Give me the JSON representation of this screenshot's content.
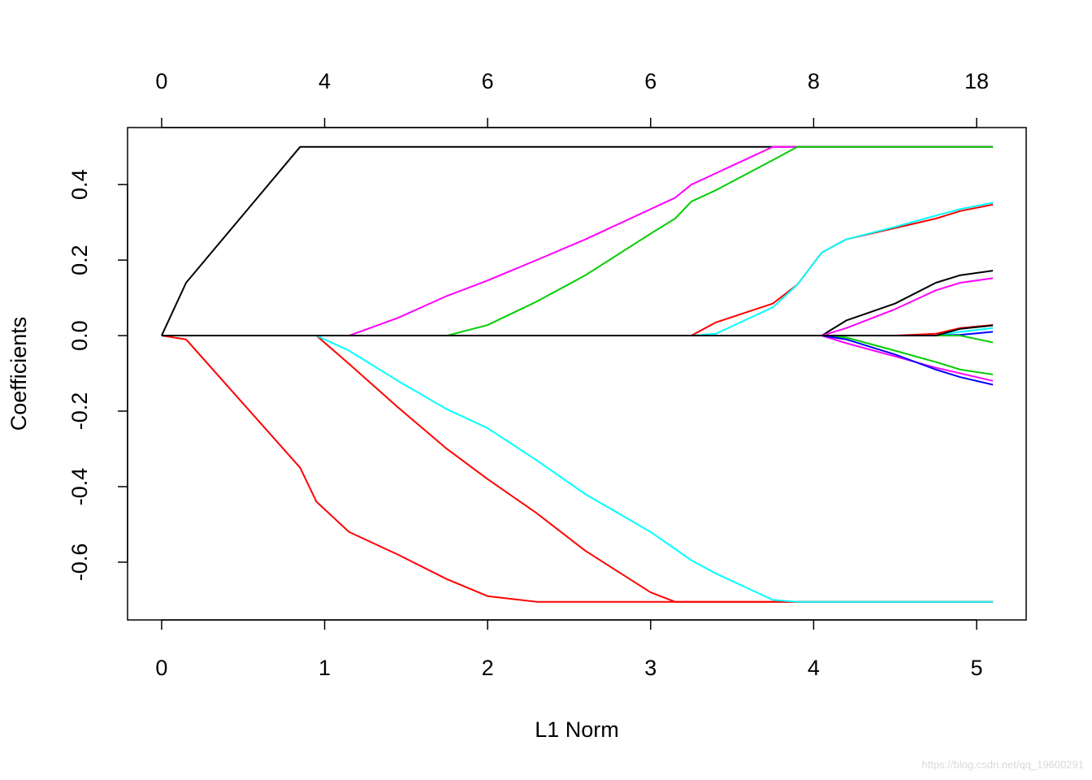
{
  "chart_data": {
    "type": "line",
    "x_label": "L1 Norm",
    "y_label": "Coefficients",
    "watermark": "https://blog.csdn.net/qq_19600291",
    "x": [
      0,
      0.15,
      0.85,
      0.95,
      1.15,
      1.45,
      1.75,
      2.0,
      2.3,
      2.6,
      3.0,
      3.15,
      3.25,
      3.4,
      3.75,
      3.9,
      4.05,
      4.2,
      4.5,
      4.75,
      4.9,
      5.1
    ],
    "xlim": [
      -0.209,
      5.304
    ],
    "ylim": [
      -0.753,
      0.551
    ],
    "xticks": [
      0,
      1,
      2,
      3,
      4,
      5
    ],
    "x2ticks": [
      0,
      {
        "value": 1,
        "label": "4"
      },
      {
        "value": 2,
        "label": "6"
      },
      {
        "value": 3,
        "label": "6"
      },
      {
        "value": 4,
        "label": "8"
      },
      {
        "value": 5,
        "label": "18"
      }
    ],
    "yticks": [
      -0.6,
      -0.4,
      -0.2,
      {
        "value": 0,
        "label": "0.0"
      },
      0.2,
      0.4
    ],
    "series": [
      {
        "color": "#000000",
        "values": [
          0,
          0.14,
          0.5,
          0.5,
          0.5,
          0.5,
          0.5,
          0.5,
          0.5,
          0.5,
          0.5,
          0.5,
          0.5,
          0.5,
          0.5,
          0.5,
          0.5,
          0.5,
          0.5,
          0.5,
          0.5,
          0.5
        ]
      },
      {
        "color": "#ff0000",
        "values": [
          0,
          -0.01,
          -0.35,
          -0.44,
          -0.52,
          -0.58,
          -0.645,
          -0.69,
          -0.705,
          -0.705,
          -0.705,
          -0.705,
          -0.705,
          -0.705,
          -0.705,
          -0.705,
          -0.705,
          -0.705,
          -0.705,
          -0.705,
          -0.705,
          -0.705
        ]
      },
      {
        "color": "#ff0000",
        "values": [
          0,
          0,
          0,
          0,
          -0.075,
          -0.19,
          -0.3,
          -0.38,
          -0.47,
          -0.57,
          -0.68,
          -0.705,
          -0.705,
          -0.705,
          -0.705,
          -0.705,
          -0.705,
          -0.705,
          -0.705,
          -0.705,
          -0.705,
          -0.705
        ]
      },
      {
        "color": "#00ffff",
        "values": [
          0,
          0,
          0,
          0,
          -0.04,
          -0.12,
          -0.195,
          -0.245,
          -0.33,
          -0.42,
          -0.52,
          -0.565,
          -0.595,
          -0.63,
          -0.7,
          -0.705,
          -0.705,
          -0.705,
          -0.705,
          -0.705,
          -0.705,
          -0.705
        ]
      },
      {
        "color": "#ff00ff",
        "values": [
          0,
          0,
          0,
          0,
          0,
          0.047,
          0.105,
          0.146,
          0.2,
          0.255,
          0.335,
          0.365,
          0.4,
          0.43,
          0.5,
          0.5,
          0.5,
          0.5,
          0.5,
          0.5,
          0.5,
          0.5
        ]
      },
      {
        "color": "#00cd00",
        "values": [
          0,
          0,
          0,
          0,
          0,
          0,
          0,
          0.028,
          0.09,
          0.16,
          0.27,
          0.31,
          0.355,
          0.385,
          0.465,
          0.5,
          0.5,
          0.5,
          0.5,
          0.5,
          0.5,
          0.5
        ]
      },
      {
        "color": "#ff0000",
        "values": [
          0,
          0,
          0,
          0,
          0,
          0,
          0,
          0,
          0,
          0,
          0,
          0,
          0,
          0.035,
          0.085,
          0.135,
          0.22,
          0.255,
          0.285,
          0.31,
          0.33,
          0.347
        ]
      },
      {
        "color": "#00ffff",
        "values": [
          0,
          0,
          0,
          0,
          0,
          0,
          0,
          0,
          0,
          0,
          0,
          0,
          0,
          0.005,
          0.075,
          0.135,
          0.22,
          0.255,
          0.288,
          0.318,
          0.335,
          0.352
        ]
      },
      {
        "color": "#000000",
        "values": [
          0,
          0,
          0,
          0,
          0,
          0,
          0,
          0,
          0,
          0,
          0,
          0,
          0,
          0,
          0,
          0,
          0,
          0.04,
          0.085,
          0.14,
          0.16,
          0.172
        ]
      },
      {
        "color": "#ff00ff",
        "values": [
          0,
          0,
          0,
          0,
          0,
          0,
          0,
          0,
          0,
          0,
          0,
          0,
          0,
          0,
          0,
          0,
          0,
          0.02,
          0.07,
          0.12,
          0.14,
          0.152
        ]
      },
      {
        "color": "#00cd00",
        "values": [
          0,
          0,
          0,
          0,
          0,
          0,
          0,
          0,
          0,
          0,
          0,
          0,
          0,
          0,
          0,
          0,
          0,
          -0.005,
          -0.04,
          -0.07,
          -0.09,
          -0.103
        ]
      },
      {
        "color": "#ff00ff",
        "values": [
          0,
          0,
          0,
          0,
          0,
          0,
          0,
          0,
          0,
          0,
          0,
          0,
          0,
          0,
          0,
          0,
          0,
          -0.02,
          -0.055,
          -0.085,
          -0.1,
          -0.12
        ]
      },
      {
        "color": "#0000ff",
        "values": [
          0,
          0,
          0,
          0,
          0,
          0,
          0,
          0,
          0,
          0,
          0,
          0,
          0,
          0,
          0,
          0,
          0,
          -0.01,
          -0.05,
          -0.09,
          -0.11,
          -0.13
        ]
      },
      {
        "color": "#ff0000",
        "values": [
          0,
          0,
          0,
          0,
          0,
          0,
          0,
          0,
          0,
          0,
          0,
          0,
          0,
          0,
          0,
          0,
          0,
          0,
          0,
          0.005,
          0.02,
          0.028
        ]
      },
      {
        "color": "#00ffff",
        "values": [
          0,
          0,
          0,
          0,
          0,
          0,
          0,
          0,
          0,
          0,
          0,
          0,
          0,
          0,
          0,
          0,
          0,
          0,
          0,
          0,
          0.01,
          0.02
        ]
      },
      {
        "color": "#0000ff",
        "values": [
          0,
          0,
          0,
          0,
          0,
          0,
          0,
          0,
          0,
          0,
          0,
          0,
          0,
          0,
          0,
          0,
          0,
          0,
          0,
          0,
          0.002,
          0.01
        ]
      },
      {
        "color": "#00cd00",
        "values": [
          0,
          0,
          0,
          0,
          0,
          0,
          0,
          0,
          0,
          0,
          0,
          0,
          0,
          0,
          0,
          0,
          0,
          0,
          0,
          0,
          0,
          -0.018
        ]
      },
      {
        "color": "#000000",
        "values": [
          0,
          0,
          0,
          0,
          0,
          0,
          0,
          0,
          0,
          0,
          0,
          0,
          0,
          0,
          0,
          0,
          0,
          0,
          0,
          0,
          0.018,
          0.027
        ]
      }
    ]
  }
}
